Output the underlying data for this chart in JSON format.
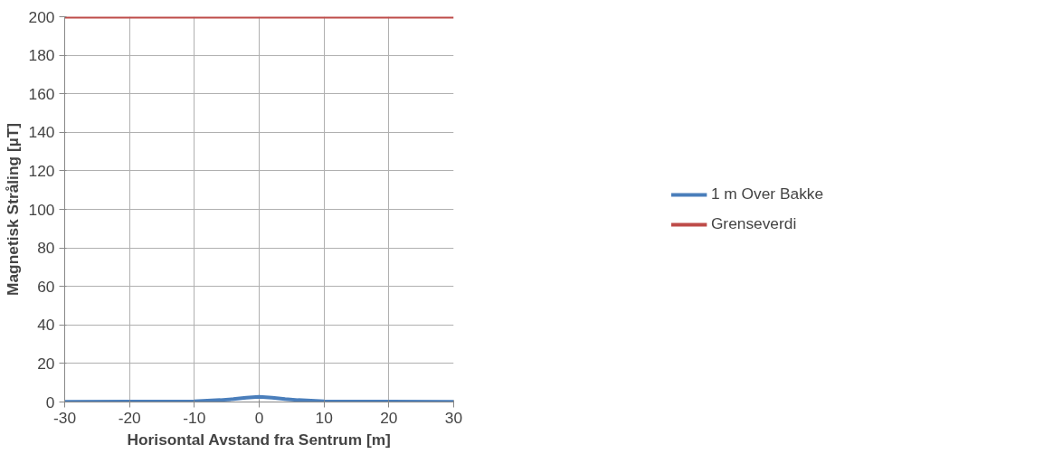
{
  "chart_data": {
    "type": "line",
    "xlabel": "Horisontal Avstand fra Sentrum [m]",
    "ylabel": "Magnetisk Stråling [µT]",
    "xlim": [
      -30,
      30
    ],
    "xticks": [
      -30,
      -20,
      -10,
      0,
      10,
      20,
      30
    ],
    "ylim": [
      0,
      200
    ],
    "yticks": [
      0,
      20,
      40,
      60,
      80,
      100,
      120,
      140,
      160,
      180,
      200
    ],
    "grid": true,
    "legend": "right",
    "marker": "none",
    "line_style": "solid",
    "series": [
      {
        "name": "1 m Over Bakke",
        "color": "#4a7ebb",
        "x": [
          -30,
          -20,
          -10,
          -6,
          -4,
          -2,
          0,
          2,
          4,
          6,
          10,
          20,
          30
        ],
        "values": [
          0.1,
          0.2,
          0.4,
          1,
          1.5,
          2.2,
          2.7,
          2.2,
          1.5,
          1,
          0.4,
          0.2,
          0.1
        ]
      },
      {
        "name": "Grenseverdi",
        "color": "#be4b48",
        "x": [
          -30,
          30
        ],
        "values": [
          200,
          200
        ]
      }
    ]
  }
}
